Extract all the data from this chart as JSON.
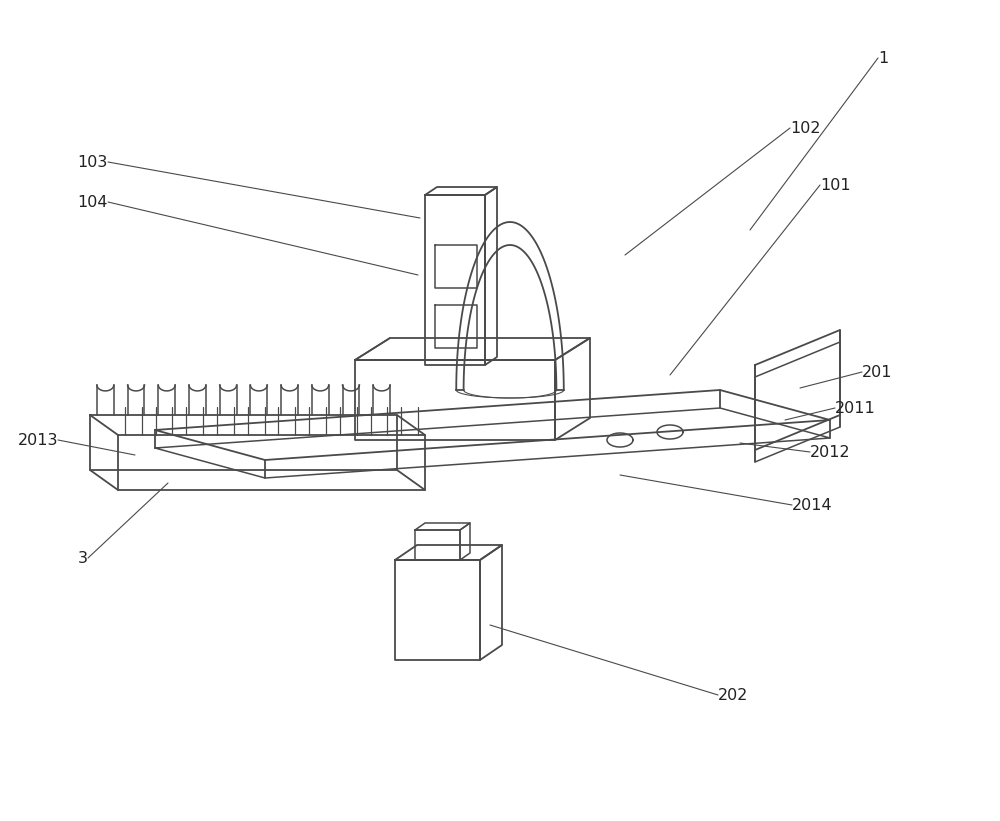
{
  "bg_color": "#ffffff",
  "line_color": "#4a4a4a",
  "line_width": 1.1,
  "label_fontsize": 11.5
}
